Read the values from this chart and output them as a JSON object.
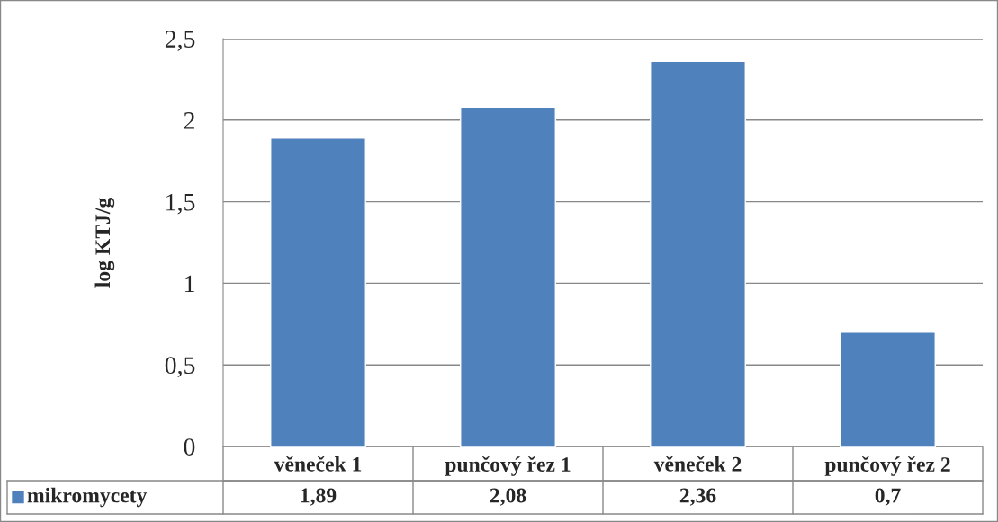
{
  "chart_data": {
    "type": "bar",
    "ylabel": "log KTJ/g",
    "categories": [
      "věneček 1",
      "punčový řez 1",
      "věneček 2",
      "punčový řez 2"
    ],
    "series": [
      {
        "name": "mikromycety",
        "color": "#4f81bd",
        "values": [
          1.89,
          2.08,
          2.36,
          0.7
        ],
        "value_labels": [
          "1,89",
          "2,08",
          "2,36",
          "0,7"
        ]
      }
    ],
    "ylim": [
      0,
      2.5
    ],
    "yticks": [
      0,
      {
        "value": 0.5,
        "label": "0,5"
      },
      1,
      {
        "value": 1.5,
        "label": "1,5"
      },
      2,
      {
        "value": 2.5,
        "label": "2,5"
      }
    ],
    "grid": "y",
    "legend": "bottom"
  }
}
